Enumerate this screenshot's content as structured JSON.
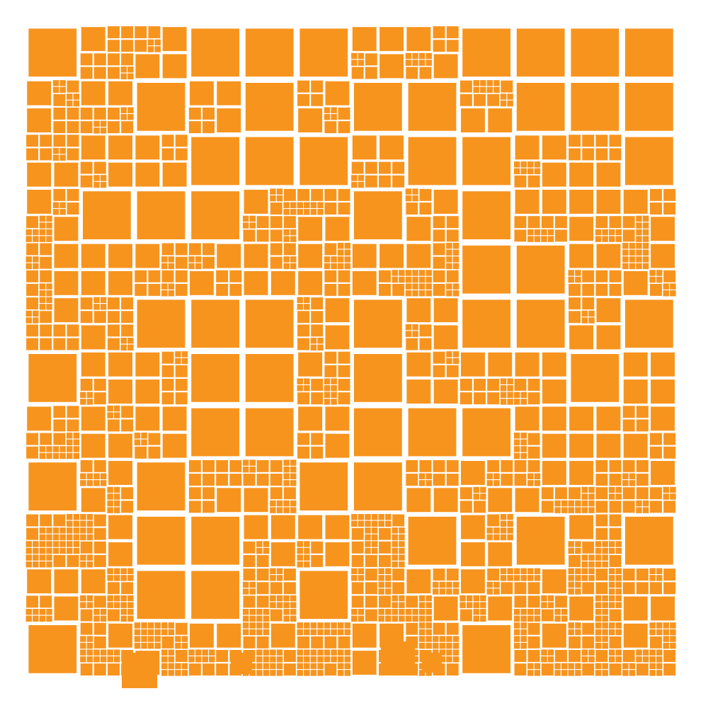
{
  "colors": {
    "tile": "#F7941E",
    "background": "#FFFFFF"
  }
}
